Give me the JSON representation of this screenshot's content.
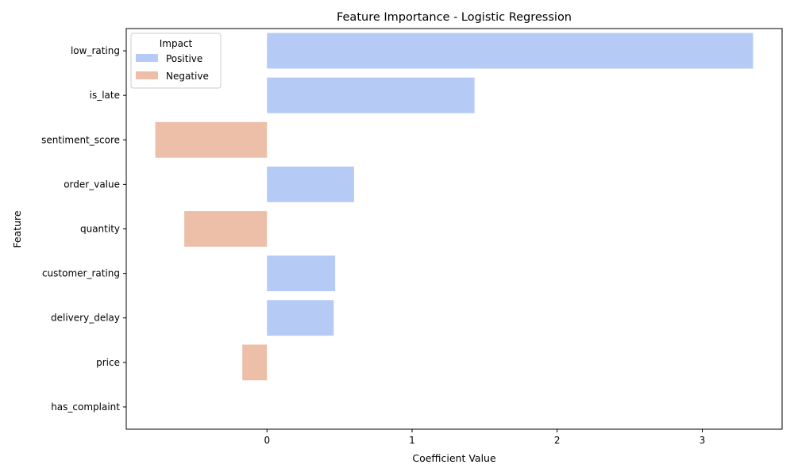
{
  "chart_data": {
    "type": "bar",
    "orientation": "horizontal",
    "title": "Feature Importance - Logistic Regression",
    "xlabel": "Coefficient Value",
    "ylabel": "Feature",
    "xlim": [
      -0.97,
      3.55
    ],
    "xticks": [
      0,
      1,
      2,
      3
    ],
    "grid": false,
    "categories": [
      "low_rating",
      "is_late",
      "sentiment_score",
      "order_value",
      "quantity",
      "customer_rating",
      "delivery_delay",
      "price",
      "has_complaint"
    ],
    "values": [
      3.35,
      1.43,
      -0.77,
      0.6,
      -0.57,
      0.47,
      0.46,
      -0.17,
      0.0
    ],
    "legend": {
      "title": "Impact",
      "placement": "upper-left",
      "entries": [
        {
          "label": "Positive",
          "color": "#b5cbf5"
        },
        {
          "label": "Negative",
          "color": "#edbfa8"
        }
      ]
    }
  }
}
